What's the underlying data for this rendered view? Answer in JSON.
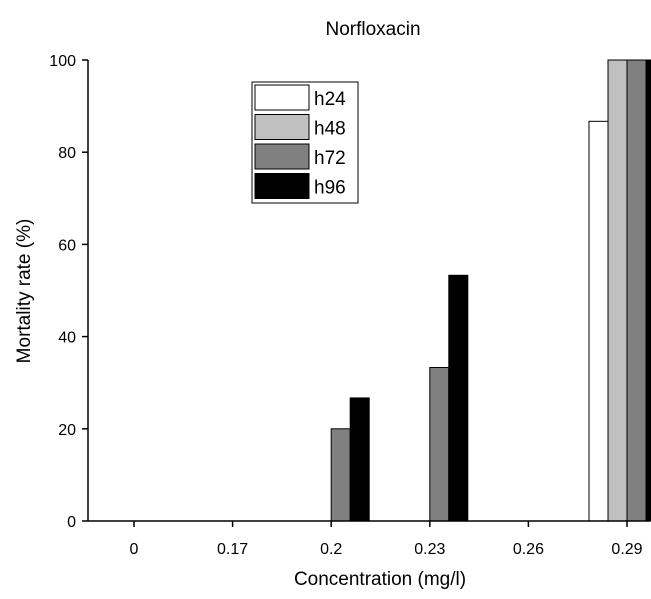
{
  "chart_data": {
    "type": "bar",
    "title": "Norfloxacin",
    "xlabel": "Concentration (mg/l)",
    "ylabel": "Mortality rate (%)",
    "categories": [
      "0",
      "0.17",
      "0.2",
      "0.23",
      "0.26",
      "0.29"
    ],
    "ylim": [
      0,
      100
    ],
    "yticks": [
      0,
      20,
      40,
      60,
      80,
      100
    ],
    "grid": false,
    "legend_position": "top-left",
    "series": [
      {
        "name": "h24",
        "color": "#ffffff",
        "values": [
          0,
          0,
          0,
          0,
          0,
          86.7
        ]
      },
      {
        "name": "h48",
        "color": "#c0c0c0",
        "values": [
          0,
          0,
          0,
          0,
          0,
          100
        ]
      },
      {
        "name": "h72",
        "color": "#808080",
        "values": [
          0,
          0,
          20,
          33.3,
          0,
          100
        ]
      },
      {
        "name": "h96",
        "color": "#000000",
        "values": [
          0,
          0,
          26.7,
          53.3,
          0,
          100
        ]
      }
    ]
  }
}
